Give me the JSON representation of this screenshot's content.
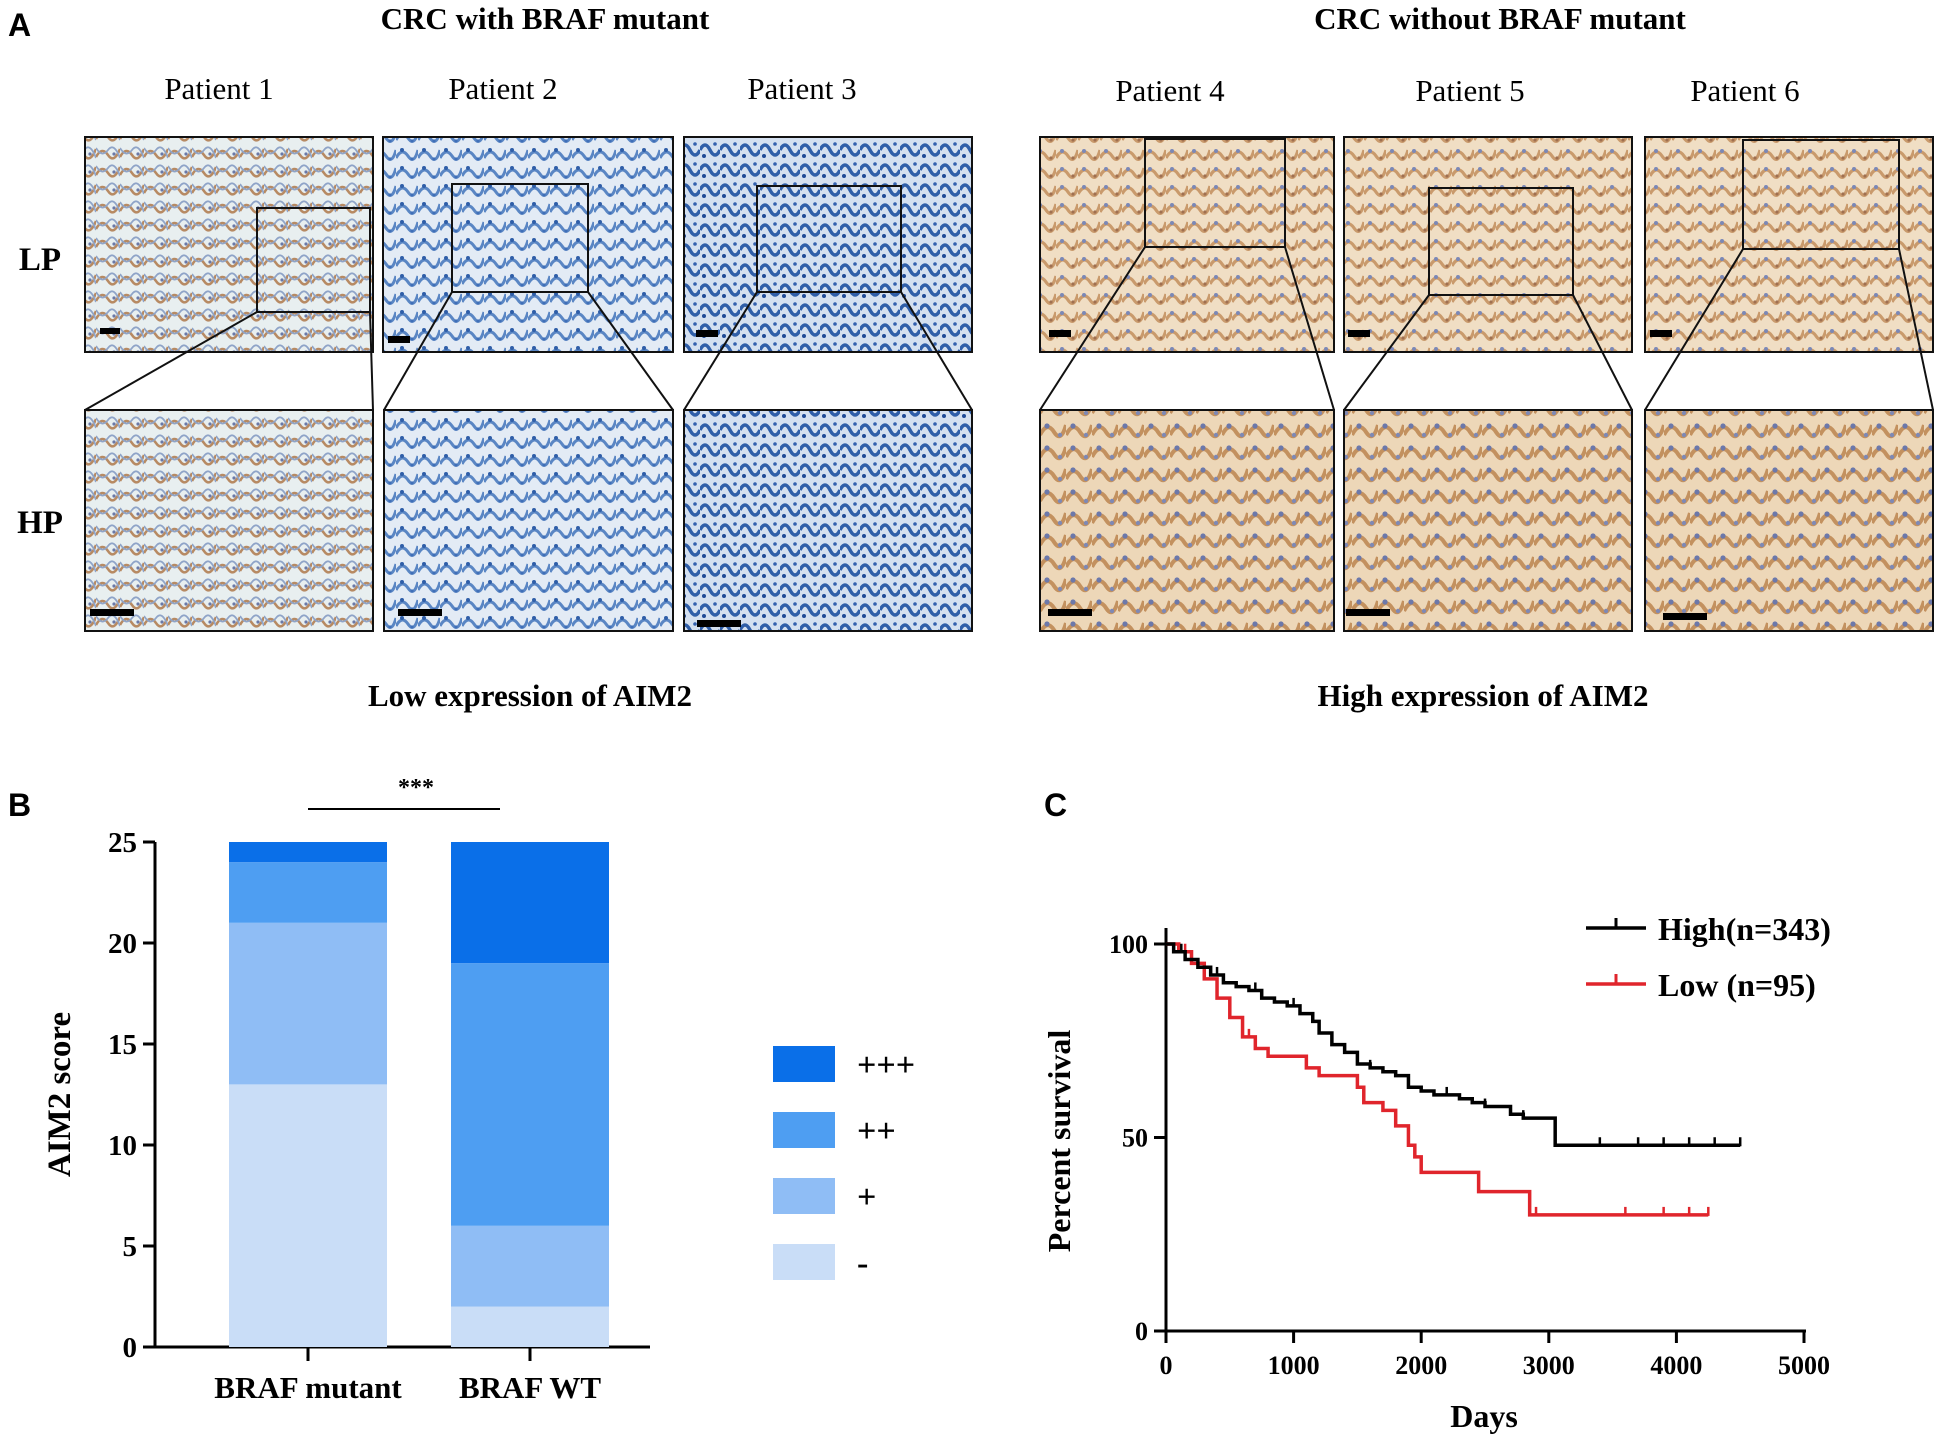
{
  "figure": {
    "panel_labels": {
      "a": "A",
      "b": "B",
      "c": "C"
    },
    "panel_a": {
      "groups": [
        {
          "title": "CRC with BRAF mutant",
          "conclusion": "Low expression of AIM2"
        },
        {
          "title": "CRC without BRAF mutant",
          "conclusion": "High expression of AIM2"
        }
      ],
      "patients": [
        "Patient 1",
        "Patient 2",
        "Patient 3",
        "Patient 4",
        "Patient 5",
        "Patient 6"
      ],
      "row_labels": [
        "LP",
        "HP"
      ],
      "stain_colors": {
        "blue": "#5a86c4",
        "brown": "#c9a47c",
        "background_blue": "#dfe8f3",
        "background_brown": "#f1e2cc"
      }
    },
    "colors": {
      "high": "#000000",
      "low": "#e0252c",
      "pp3": "#0a6fe8",
      "pp2": "#4e9ef2",
      "pp1": "#8fbdf5",
      "neg": "#c9ddf7"
    }
  },
  "chart_data": [
    {
      "type": "bar",
      "stacked": true,
      "panel": "B",
      "categories": [
        "BRAF mutant",
        "BRAF WT"
      ],
      "series": [
        {
          "name": "-",
          "values": [
            13,
            2
          ]
        },
        {
          "name": "+",
          "values": [
            8,
            4
          ]
        },
        {
          "name": "++",
          "values": [
            3,
            13
          ]
        },
        {
          "name": "+++",
          "values": [
            1,
            6
          ]
        }
      ],
      "ylabel": "AIM2 score",
      "xlabel": "",
      "ylim": [
        0,
        25
      ],
      "yticks": [
        0,
        5,
        10,
        15,
        20,
        25
      ],
      "legend_order": [
        "+++",
        "++",
        "+",
        "-"
      ],
      "significance": "***"
    },
    {
      "type": "line",
      "subtype": "kaplan-meier",
      "panel": "C",
      "xlabel": "Days",
      "ylabel": "Percent survival",
      "xlim": [
        0,
        5000
      ],
      "ylim": [
        0,
        100
      ],
      "xticks": [
        0,
        1000,
        2000,
        3000,
        4000,
        5000
      ],
      "yticks": [
        0,
        50,
        100
      ],
      "series": [
        {
          "name": "High",
          "legend_label": "High(n=343)",
          "x": [
            0,
            60,
            150,
            250,
            350,
            450,
            550,
            650,
            750,
            850,
            950,
            1050,
            1150,
            1200,
            1300,
            1400,
            1500,
            1600,
            1700,
            1800,
            1900,
            2000,
            2100,
            2200,
            2300,
            2400,
            2500,
            2600,
            2700,
            2800,
            2900,
            3000,
            3050,
            3100,
            3300,
            3600,
            3900,
            4200,
            4500
          ],
          "y": [
            100,
            98,
            96,
            94,
            92,
            90,
            89,
            88,
            86,
            85,
            84,
            82,
            80,
            77,
            74,
            72,
            69,
            68,
            67,
            66,
            63,
            62,
            61,
            61,
            60,
            59,
            58,
            58,
            56,
            55,
            55,
            55,
            48,
            48,
            48,
            48,
            48,
            48,
            48
          ],
          "censor_x": [
            120,
            400,
            700,
            1000,
            1300,
            1600,
            1900,
            2200,
            2500,
            2800,
            3400,
            3700,
            3900,
            4100,
            4300,
            4500
          ]
        },
        {
          "name": "Low",
          "legend_label": "Low (n=95)",
          "x": [
            0,
            100,
            200,
            300,
            400,
            500,
            600,
            700,
            800,
            1000,
            1100,
            1200,
            1400,
            1500,
            1550,
            1700,
            1800,
            1900,
            1950,
            2000,
            2100,
            2400,
            2450,
            2800,
            2850,
            3000,
            3500,
            4000,
            4250
          ],
          "y": [
            100,
            98,
            95,
            91,
            86,
            81,
            76,
            73,
            71,
            71,
            68,
            66,
            66,
            63,
            59,
            57,
            53,
            48,
            45,
            41,
            41,
            41,
            36,
            36,
            30,
            30,
            30,
            30,
            30
          ],
          "censor_x": [
            150,
            650,
            1100,
            1700,
            2900,
            3600,
            3900,
            4100,
            4250
          ]
        }
      ]
    }
  ]
}
